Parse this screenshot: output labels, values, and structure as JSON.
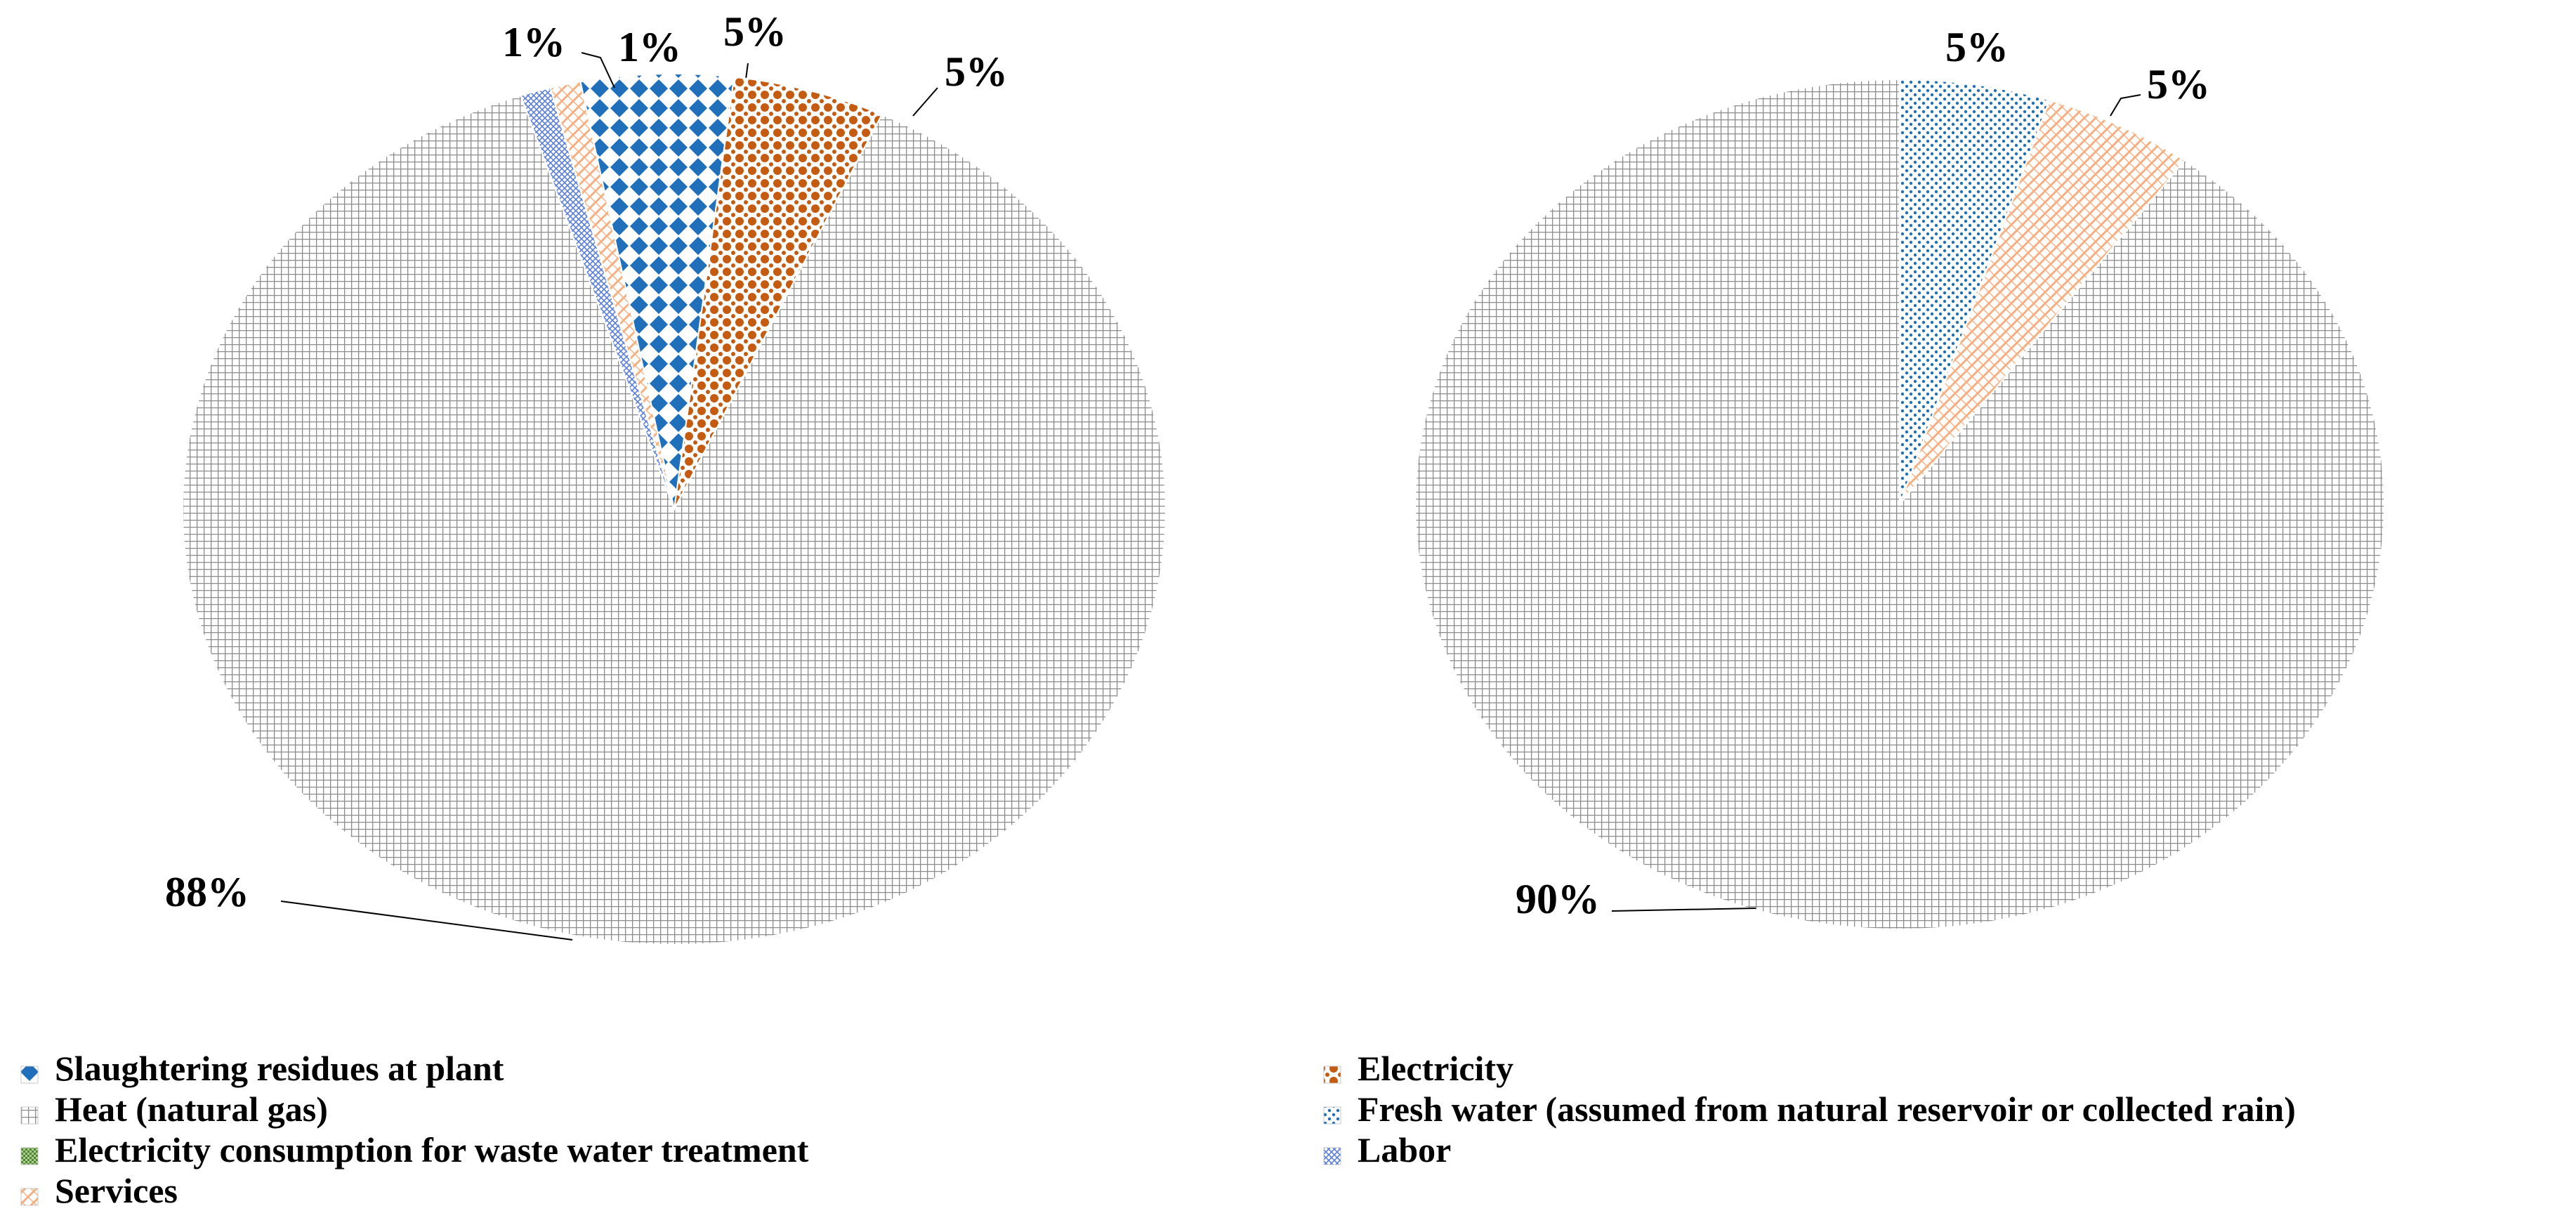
{
  "chart_data": [
    {
      "type": "pie",
      "title": "",
      "slices": [
        {
          "name": "Slaughtering residues at plant",
          "value": 5,
          "label": "5%"
        },
        {
          "name": "Electricity",
          "value": 5,
          "label": "5%"
        },
        {
          "name": "Heat (natural gas)",
          "value": 88,
          "label": "88%"
        },
        {
          "name": "Labor",
          "value": 1,
          "label": "1%"
        },
        {
          "name": "Services",
          "value": 1,
          "label": "1%"
        }
      ]
    },
    {
      "type": "pie",
      "title": "",
      "slices": [
        {
          "name": "Fresh water  (assumed from natural reservoir or collected rain)",
          "value": 5,
          "label": "5%"
        },
        {
          "name": "Services",
          "value": 5,
          "label": "5%"
        },
        {
          "name": "Heat (natural gas)",
          "value": 90,
          "label": "90%"
        }
      ]
    }
  ],
  "legend": {
    "position": "bottom",
    "items": [
      {
        "key": "slaughtering",
        "label": "Slaughtering residues at plant",
        "color": "#1f6fba"
      },
      {
        "key": "electricity",
        "label": "Electricity",
        "color": "#c55a11"
      },
      {
        "key": "heat",
        "label": "Heat (natural gas)",
        "color": "#9a9a9a"
      },
      {
        "key": "freshwater",
        "label": "Fresh water  (assumed from natural reservoir or collected rain)",
        "color": "#1f9ad6"
      },
      {
        "key": "wastewater",
        "label": "Electricity consumption for waste water treatment",
        "color": "#548235"
      },
      {
        "key": "labor",
        "label": "Labor",
        "color": "#5b7fd6"
      },
      {
        "key": "services",
        "label": "Services",
        "color": "#f4b183"
      }
    ]
  }
}
